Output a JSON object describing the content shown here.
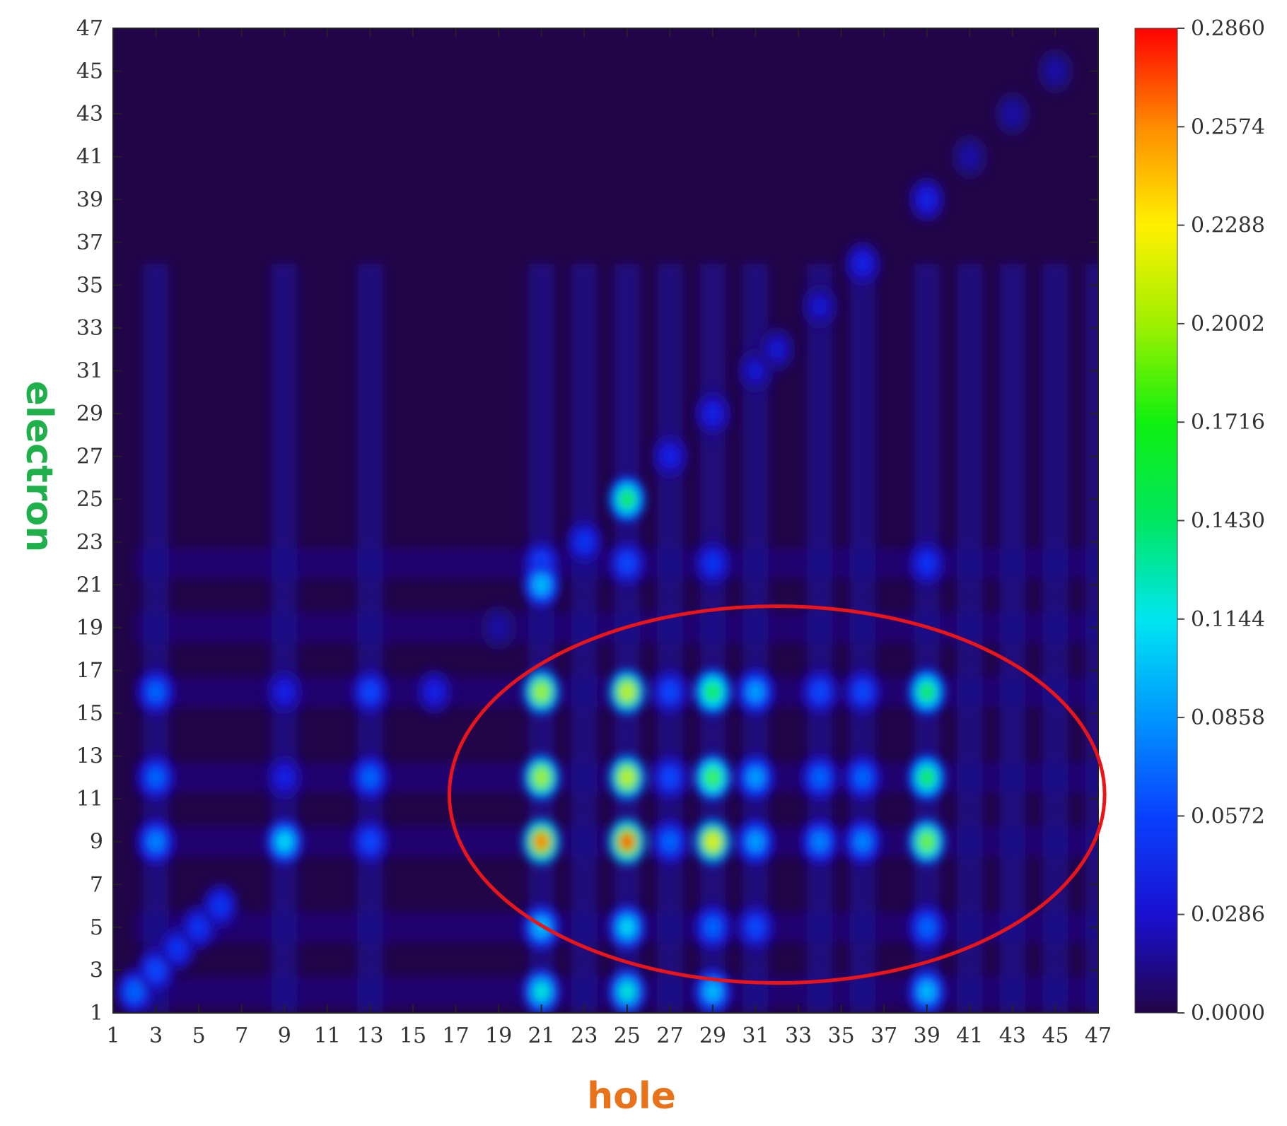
{
  "chart_data": {
    "type": "heatmap",
    "title": "",
    "xlabel": "hole",
    "ylabel": "electron",
    "xlabel_color": "#e8731a",
    "ylabel_color": "#1fb04c",
    "x_range": [
      1,
      47
    ],
    "y_range": [
      1,
      47
    ],
    "x_ticks": [
      "1",
      "3",
      "5",
      "7",
      "9",
      "11",
      "13",
      "15",
      "17",
      "19",
      "21",
      "23",
      "25",
      "27",
      "29",
      "31",
      "33",
      "35",
      "37",
      "39",
      "41",
      "43",
      "45",
      "47"
    ],
    "y_ticks": [
      "1",
      "3",
      "5",
      "7",
      "9",
      "11",
      "13",
      "15",
      "17",
      "19",
      "21",
      "23",
      "25",
      "27",
      "29",
      "31",
      "33",
      "35",
      "37",
      "39",
      "41",
      "43",
      "45",
      "47"
    ],
    "colorbar": {
      "min": 0.0,
      "max": 0.286,
      "labels": [
        "0.2860",
        "0.2574",
        "0.2288",
        "0.2002",
        "0.1716",
        "0.1430",
        "0.1144",
        "0.0858",
        "0.0572",
        "0.0286",
        "0.0000"
      ],
      "colormap": "rainbow"
    },
    "background_color": "#220548",
    "hot_columns": [
      3,
      9,
      13,
      21,
      23,
      25,
      27,
      29,
      31,
      34,
      36,
      39,
      41,
      43,
      45,
      47
    ],
    "hot_rows": [
      2,
      5,
      9,
      12,
      16,
      19,
      22
    ],
    "hot_spots": [
      {
        "x": 21,
        "y": 9,
        "v": 0.26
      },
      {
        "x": 25,
        "y": 9,
        "v": 0.27
      },
      {
        "x": 29,
        "y": 9,
        "v": 0.22
      },
      {
        "x": 21,
        "y": 12,
        "v": 0.2
      },
      {
        "x": 25,
        "y": 12,
        "v": 0.21
      },
      {
        "x": 29,
        "y": 12,
        "v": 0.18
      },
      {
        "x": 21,
        "y": 16,
        "v": 0.2
      },
      {
        "x": 25,
        "y": 16,
        "v": 0.21
      },
      {
        "x": 29,
        "y": 16,
        "v": 0.17
      },
      {
        "x": 39,
        "y": 9,
        "v": 0.19
      },
      {
        "x": 39,
        "y": 12,
        "v": 0.16
      },
      {
        "x": 39,
        "y": 16,
        "v": 0.16
      },
      {
        "x": 25,
        "y": 25,
        "v": 0.16
      },
      {
        "x": 21,
        "y": 2,
        "v": 0.12
      },
      {
        "x": 25,
        "y": 2,
        "v": 0.12
      },
      {
        "x": 9,
        "y": 9,
        "v": 0.11
      },
      {
        "x": 21,
        "y": 21,
        "v": 0.1
      },
      {
        "x": 29,
        "y": 2,
        "v": 0.1
      },
      {
        "x": 39,
        "y": 2,
        "v": 0.1
      },
      {
        "x": 25,
        "y": 5,
        "v": 0.11
      },
      {
        "x": 21,
        "y": 5,
        "v": 0.1
      },
      {
        "x": 3,
        "y": 9,
        "v": 0.08
      },
      {
        "x": 3,
        "y": 12,
        "v": 0.07
      },
      {
        "x": 3,
        "y": 16,
        "v": 0.07
      },
      {
        "x": 13,
        "y": 12,
        "v": 0.07
      },
      {
        "x": 13,
        "y": 9,
        "v": 0.06
      },
      {
        "x": 13,
        "y": 16,
        "v": 0.06
      },
      {
        "x": 31,
        "y": 9,
        "v": 0.09
      },
      {
        "x": 31,
        "y": 12,
        "v": 0.09
      },
      {
        "x": 31,
        "y": 16,
        "v": 0.09
      },
      {
        "x": 27,
        "y": 9,
        "v": 0.07
      },
      {
        "x": 34,
        "y": 9,
        "v": 0.08
      },
      {
        "x": 36,
        "y": 9,
        "v": 0.08
      },
      {
        "x": 27,
        "y": 12,
        "v": 0.06
      },
      {
        "x": 34,
        "y": 12,
        "v": 0.07
      },
      {
        "x": 36,
        "y": 12,
        "v": 0.07
      },
      {
        "x": 27,
        "y": 16,
        "v": 0.06
      },
      {
        "x": 34,
        "y": 16,
        "v": 0.06
      },
      {
        "x": 36,
        "y": 16,
        "v": 0.06
      },
      {
        "x": 29,
        "y": 5,
        "v": 0.07
      },
      {
        "x": 31,
        "y": 5,
        "v": 0.06
      },
      {
        "x": 39,
        "y": 5,
        "v": 0.07
      },
      {
        "x": 25,
        "y": 22,
        "v": 0.06
      },
      {
        "x": 21,
        "y": 22,
        "v": 0.06
      },
      {
        "x": 39,
        "y": 22,
        "v": 0.05
      },
      {
        "x": 29,
        "y": 22,
        "v": 0.05
      },
      {
        "x": 9,
        "y": 16,
        "v": 0.04
      },
      {
        "x": 9,
        "y": 12,
        "v": 0.04
      }
    ],
    "diagonal_spots": [
      {
        "x": 2,
        "y": 2,
        "v": 0.07
      },
      {
        "x": 3,
        "y": 3,
        "v": 0.06
      },
      {
        "x": 4,
        "y": 4,
        "v": 0.05
      },
      {
        "x": 5,
        "y": 5,
        "v": 0.05
      },
      {
        "x": 6,
        "y": 6,
        "v": 0.05
      },
      {
        "x": 16,
        "y": 16,
        "v": 0.04
      },
      {
        "x": 19,
        "y": 19,
        "v": 0.02
      },
      {
        "x": 23,
        "y": 23,
        "v": 0.05
      },
      {
        "x": 27,
        "y": 27,
        "v": 0.04
      },
      {
        "x": 29,
        "y": 29,
        "v": 0.04
      },
      {
        "x": 31,
        "y": 31,
        "v": 0.03
      },
      {
        "x": 32,
        "y": 32,
        "v": 0.03
      },
      {
        "x": 34,
        "y": 34,
        "v": 0.03
      },
      {
        "x": 36,
        "y": 36,
        "v": 0.04
      },
      {
        "x": 39,
        "y": 39,
        "v": 0.04
      },
      {
        "x": 41,
        "y": 41,
        "v": 0.02
      },
      {
        "x": 43,
        "y": 43,
        "v": 0.02
      },
      {
        "x": 45,
        "y": 45,
        "v": 0.02
      }
    ],
    "annotation": {
      "shape": "ellipse",
      "color": "#e8161a",
      "cx": 32,
      "cy": 11.2,
      "rx": 15.3,
      "ry": 8.8
    }
  }
}
